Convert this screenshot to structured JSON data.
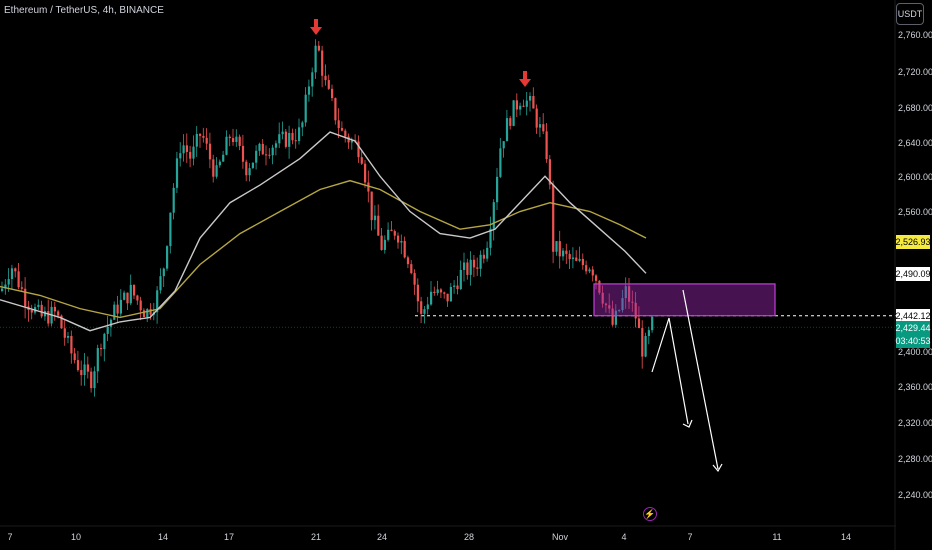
{
  "header": {
    "symbol_title": "Ethereum / TetherUS, 4h, BINANCE"
  },
  "toolbar": {
    "currency_button": "USDT"
  },
  "price_axis": {
    "ticks": [
      "2,760.00",
      "2,720.00",
      "2,680.00",
      "2,640.00",
      "2,600.00",
      "2,560.00",
      "2,400.00",
      "2,360.00",
      "2,320.00",
      "2,280.00",
      "2,240.00"
    ],
    "labels": {
      "ma_slow": {
        "value": "2,526.93",
        "bg": "#f5ea3f",
        "fg": "#000000"
      },
      "ma_fast": {
        "value": "2,490.09",
        "bg": "#ffffff",
        "fg": "#000000"
      },
      "level": {
        "value": "2,442.12",
        "bg": "#ffffff",
        "fg": "#000000"
      },
      "last": {
        "value": "2,429.44",
        "bg": "#089981",
        "fg": "#ffffff"
      },
      "countdown": {
        "value": "03:40:53",
        "bg": "#089981",
        "fg": "#ffffff"
      }
    }
  },
  "time_axis": {
    "ticks": [
      "7",
      "10",
      "14",
      "17",
      "21",
      "24",
      "28",
      "Nov",
      "4",
      "7",
      "11",
      "14"
    ]
  },
  "colors": {
    "up": "#26a69a",
    "down": "#ef5350",
    "ma_slow": "#b5a642",
    "ma_fast": "#c9c9c9",
    "zone": "#9c27b0",
    "arrow": "#e53935",
    "projection": "#ffffff"
  },
  "icons": {
    "events": "lightning-icon",
    "peaks": "arrow-down-icon"
  }
}
